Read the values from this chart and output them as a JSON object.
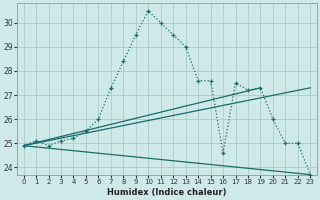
{
  "xlabel": "Humidex (Indice chaleur)",
  "bg_color": "#cfe8e8",
  "grid_color": "#a8cccc",
  "line_color": "#1a6b6b",
  "xlim": [
    -0.5,
    23.5
  ],
  "ylim": [
    23.7,
    30.8
  ],
  "yticks": [
    24,
    25,
    26,
    27,
    28,
    29,
    30
  ],
  "xticks": [
    0,
    1,
    2,
    3,
    4,
    5,
    6,
    7,
    8,
    9,
    10,
    11,
    12,
    13,
    14,
    15,
    16,
    17,
    18,
    19,
    20,
    21,
    22,
    23
  ],
  "series1_x": [
    0,
    1,
    2,
    3,
    4,
    5,
    6,
    7,
    8,
    9,
    10,
    11,
    12,
    13,
    14,
    15,
    16,
    17,
    18,
    19,
    20,
    21,
    22,
    23
  ],
  "series1_y": [
    24.9,
    25.1,
    24.9,
    25.1,
    25.2,
    25.5,
    26.0,
    27.3,
    28.4,
    29.5,
    30.5,
    30.0,
    29.5,
    29.0,
    27.6,
    27.6,
    24.6,
    27.5,
    27.2,
    27.3,
    26.0,
    25.0,
    25.0,
    23.7
  ],
  "line1_x": [
    0,
    23
  ],
  "line1_y": [
    24.9,
    23.7
  ],
  "line2_x": [
    0,
    23
  ],
  "line2_y": [
    24.9,
    27.3
  ],
  "line3_x": [
    0,
    19
  ],
  "line3_y": [
    24.9,
    27.3
  ]
}
